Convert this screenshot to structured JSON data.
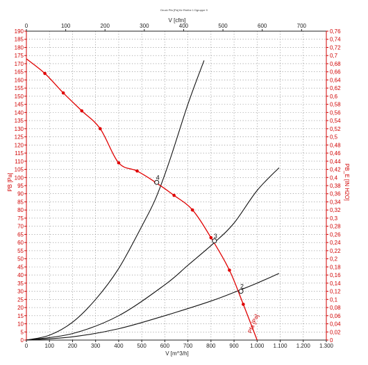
{
  "chart_data": {
    "type": "line",
    "title": "Druck Pfa [Pa] für Rreihe 1 Dgruppe 9",
    "x_top": {
      "label": "V [cfm]",
      "ticks": [
        0,
        100,
        200,
        300,
        400,
        500,
        600,
        700
      ],
      "range": [
        0,
        763
      ]
    },
    "x_bottom": {
      "label": "V [m^3/h]",
      "ticks": [
        "0",
        "100",
        "200",
        "300",
        "400",
        "500",
        "600",
        "700",
        "800",
        "900",
        "1.000",
        "1.100",
        "1.200",
        "1.300"
      ],
      "range": [
        0,
        1300
      ]
    },
    "y_left": {
      "label": "PB [Pa]",
      "ticks": [
        0,
        5,
        10,
        15,
        20,
        25,
        30,
        35,
        40,
        45,
        50,
        55,
        60,
        65,
        70,
        75,
        80,
        85,
        90,
        95,
        100,
        105,
        110,
        115,
        120,
        125,
        130,
        135,
        140,
        145,
        150,
        155,
        160,
        165,
        170,
        175,
        180,
        185,
        190
      ],
      "range": [
        0,
        190
      ]
    },
    "y_right": {
      "label": "PB_E [IN H2O]",
      "ticks": [
        "0",
        "0,02",
        "0,04",
        "0,06",
        "0,08",
        "0,1",
        "0,12",
        "0,14",
        "0,16",
        "0,18",
        "0,2",
        "0,22",
        "0,24",
        "0,26",
        "0,28",
        "0,3",
        "0,32",
        "0,34",
        "0,36",
        "0,38",
        "0,4",
        "0,42",
        "0,44",
        "0,46",
        "0,48",
        "0,5",
        "0,52",
        "0,54",
        "0,56",
        "0,58",
        "0,6",
        "0,62",
        "0,64",
        "0,66",
        "0,68",
        "0,7",
        "0,72",
        "0,74",
        "0,76"
      ]
    },
    "grid": true,
    "series": [
      {
        "name": "Pfa [Pa]",
        "color": "#e00000",
        "markers": true,
        "points": [
          [
            0,
            173
          ],
          [
            80,
            164
          ],
          [
            160,
            152
          ],
          [
            240,
            141
          ],
          [
            320,
            130
          ],
          [
            400,
            109
          ],
          [
            480,
            104
          ],
          [
            560,
            97
          ],
          [
            640,
            89
          ],
          [
            720,
            80
          ],
          [
            800,
            63
          ],
          [
            880,
            43
          ],
          [
            940,
            22
          ],
          [
            1000,
            0
          ]
        ]
      }
    ],
    "system_curves": [
      {
        "color": "#111111",
        "points": [
          [
            0,
            0
          ],
          [
            100,
            3
          ],
          [
            200,
            11
          ],
          [
            300,
            25
          ],
          [
            400,
            44
          ],
          [
            500,
            70
          ],
          [
            560,
            87
          ],
          [
            620,
            110
          ],
          [
            700,
            145
          ],
          [
            770,
            172
          ]
        ]
      },
      {
        "color": "#111111",
        "points": [
          [
            0,
            0
          ],
          [
            200,
            4
          ],
          [
            400,
            15
          ],
          [
            600,
            34
          ],
          [
            700,
            46
          ],
          [
            815,
            60
          ],
          [
            900,
            72
          ],
          [
            1000,
            92
          ],
          [
            1095,
            106
          ]
        ]
      },
      {
        "color": "#111111",
        "points": [
          [
            0,
            0
          ],
          [
            200,
            2
          ],
          [
            400,
            7
          ],
          [
            600,
            15
          ],
          [
            800,
            24
          ],
          [
            930,
            31
          ],
          [
            1000,
            35
          ],
          [
            1095,
            41
          ]
        ]
      }
    ],
    "operating_points": [
      {
        "label": "4",
        "x": 565,
        "y": 97
      },
      {
        "label": "3",
        "x": 815,
        "y": 61
      },
      {
        "label": "2",
        "x": 930,
        "y": 30
      }
    ],
    "curve_label": "Pfa [Pa]"
  }
}
